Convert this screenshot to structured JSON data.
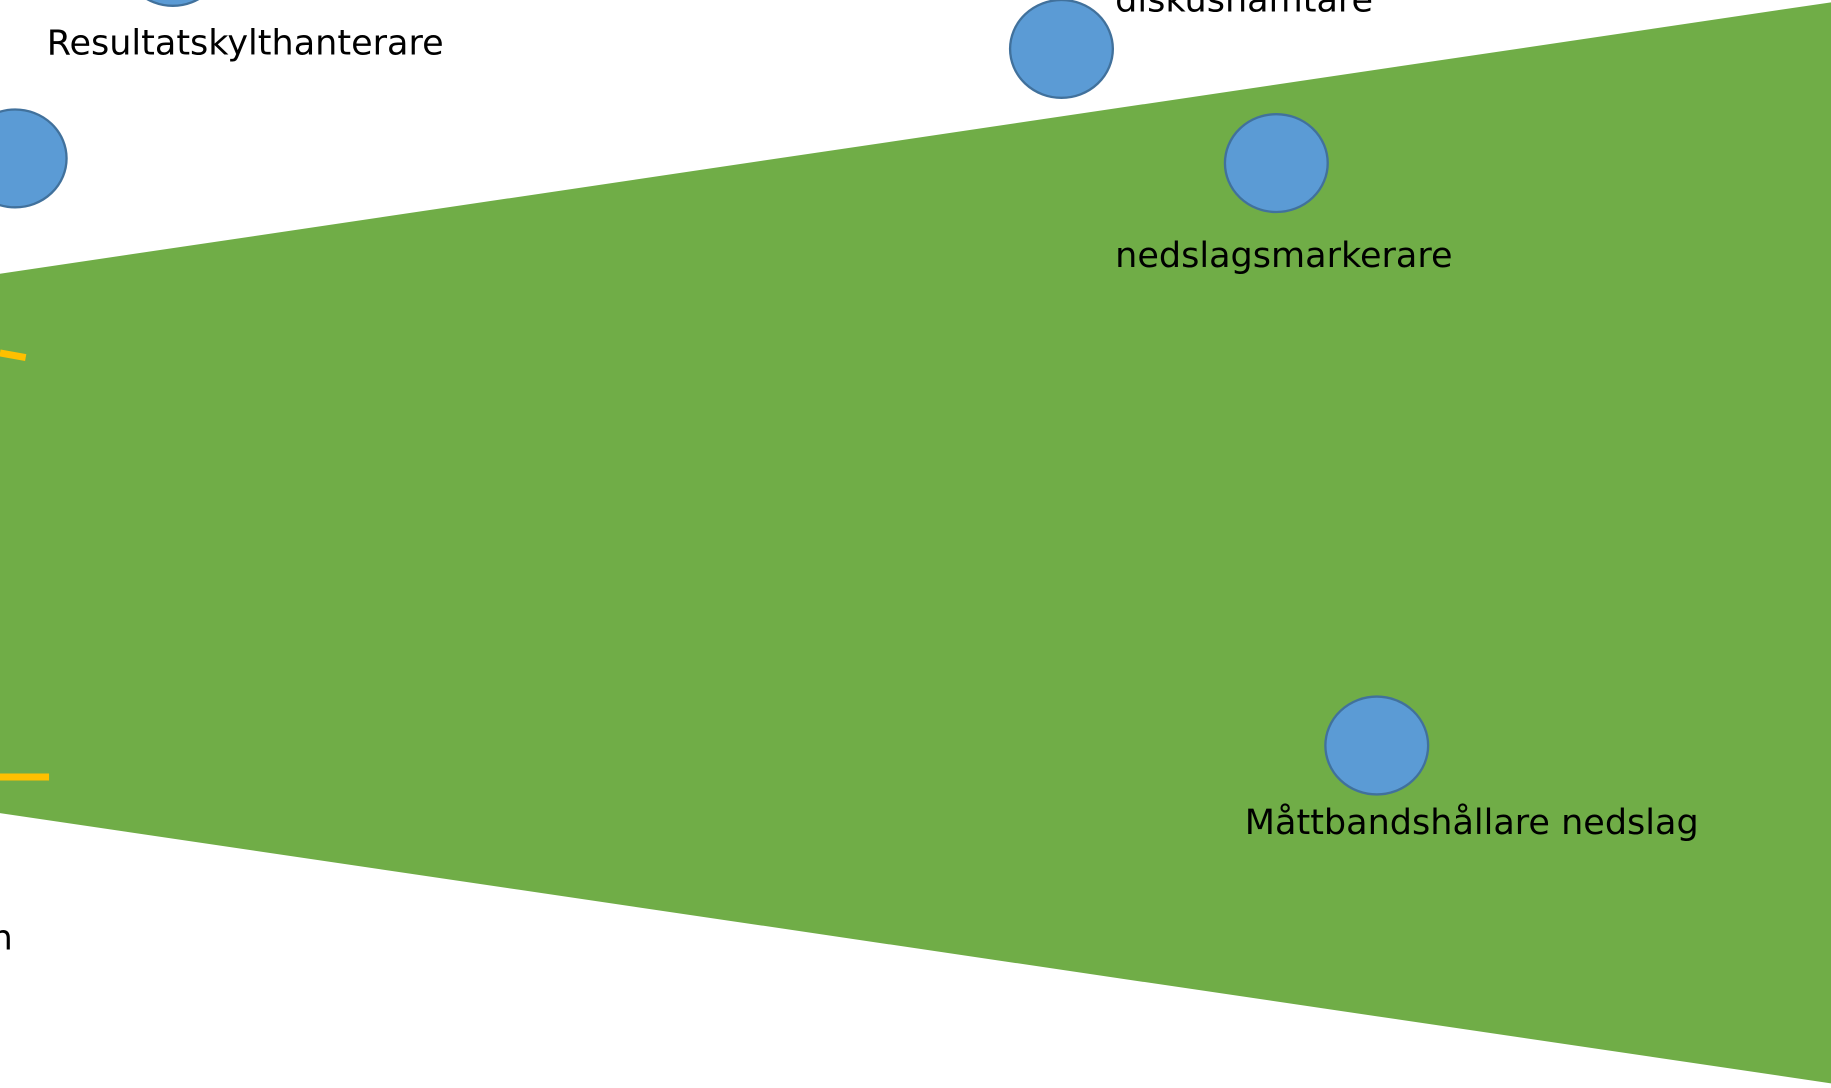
{
  "labels": {
    "top_left": "Resultatskylthanterare",
    "top_right": "diskushämtare",
    "right_upper": "nedslagsmarkerare",
    "right_lower": "Måttbandshållare nedslag",
    "bottom_left": "n"
  }
}
